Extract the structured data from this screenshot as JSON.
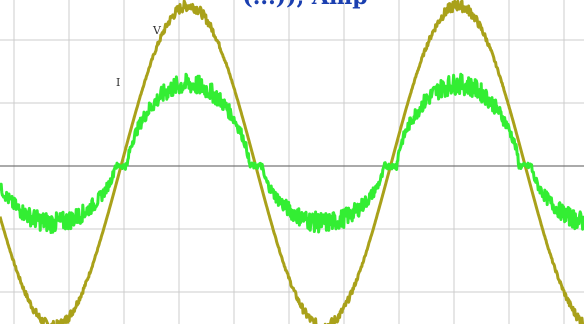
{
  "chart_data": {
    "type": "line",
    "title": "",
    "xlabel": "",
    "ylabel": "",
    "grid": true,
    "grid_divisions": {
      "x": 10,
      "y": 6
    },
    "xlim": [
      0,
      10
    ],
    "ylim": [
      -3,
      3
    ],
    "header_fragment": "(...)), Amp",
    "series": [
      {
        "name": "V",
        "color": "#a9a11a",
        "amplitude": 2.6,
        "period": 4.9,
        "phase_zero_at": 1.0
      },
      {
        "name": "I",
        "color": "#33ee33",
        "peak_positive": 1.3,
        "peak_negative": -0.9,
        "flat_level": 0.0,
        "period": 4.9,
        "ripple": 0.12
      }
    ]
  },
  "colors": {
    "background": "#ffffff",
    "grid": "#cccccc",
    "axis": "#777777",
    "header": "#1a3fb0"
  }
}
